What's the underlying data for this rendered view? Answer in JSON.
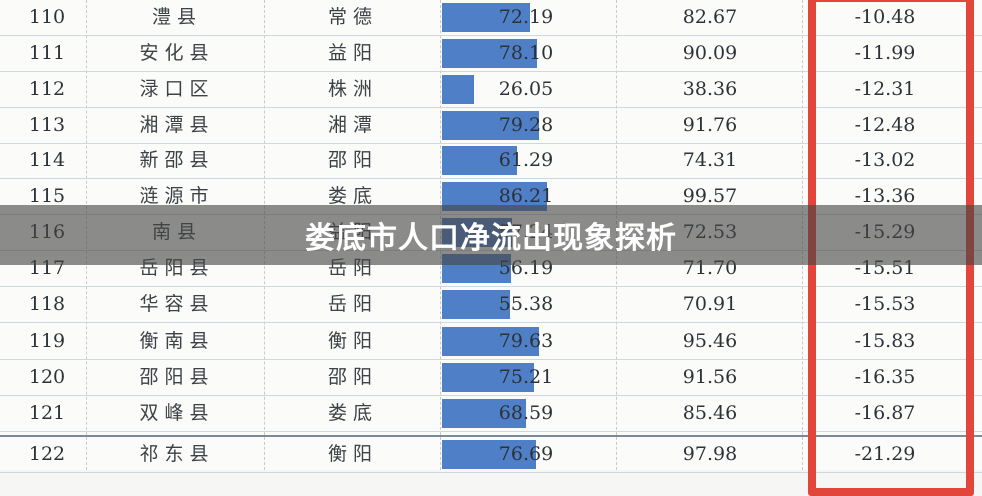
{
  "title": "娄底市人口净流出现象探析",
  "colors": {
    "bar": "#4f7fc6",
    "highlight": "#e2463a",
    "overlay": "rgba(70,70,70,0.62)"
  },
  "rows": [
    {
      "rank": "110",
      "county": "澧县",
      "city": "常德",
      "pop": "72.19",
      "pop_value": 72.19,
      "base": "82.67",
      "change": "-10.48"
    },
    {
      "rank": "111",
      "county": "安化县",
      "city": "益阳",
      "pop": "78.10",
      "pop_value": 78.1,
      "base": "90.09",
      "change": "-11.99"
    },
    {
      "rank": "112",
      "county": "渌口区",
      "city": "株洲",
      "pop": "26.05",
      "pop_value": 26.05,
      "base": "38.36",
      "change": "-12.31"
    },
    {
      "rank": "113",
      "county": "湘潭县",
      "city": "湘潭",
      "pop": "79.28",
      "pop_value": 79.28,
      "base": "91.76",
      "change": "-12.48"
    },
    {
      "rank": "114",
      "county": "新邵县",
      "city": "邵阳",
      "pop": "61.29",
      "pop_value": 61.29,
      "base": "74.31",
      "change": "-13.02"
    },
    {
      "rank": "115",
      "county": "涟源市",
      "city": "娄底",
      "pop": "86.21",
      "pop_value": 86.21,
      "base": "99.57",
      "change": "-13.36"
    },
    {
      "rank": "116",
      "county": "南县",
      "city": "益阳",
      "pop": "57.24",
      "pop_value": 57.24,
      "base": "72.53",
      "change": "-15.29"
    },
    {
      "rank": "117",
      "county": "岳阳县",
      "city": "岳阳",
      "pop": "56.19",
      "pop_value": 56.19,
      "base": "71.70",
      "change": "-15.51"
    },
    {
      "rank": "118",
      "county": "华容县",
      "city": "岳阳",
      "pop": "55.38",
      "pop_value": 55.38,
      "base": "70.91",
      "change": "-15.53"
    },
    {
      "rank": "119",
      "county": "衡南县",
      "city": "衡阳",
      "pop": "79.63",
      "pop_value": 79.63,
      "base": "95.46",
      "change": "-15.83"
    },
    {
      "rank": "120",
      "county": "邵阳县",
      "city": "邵阳",
      "pop": "75.21",
      "pop_value": 75.21,
      "base": "91.56",
      "change": "-16.35"
    },
    {
      "rank": "121",
      "county": "双峰县",
      "city": "娄底",
      "pop": "68.59",
      "pop_value": 68.59,
      "base": "85.46",
      "change": "-16.87"
    },
    {
      "rank": "122",
      "county": "祁东县",
      "city": "衡阳",
      "pop": "76.69",
      "pop_value": 76.69,
      "base": "97.98",
      "change": "-21.29"
    }
  ]
}
